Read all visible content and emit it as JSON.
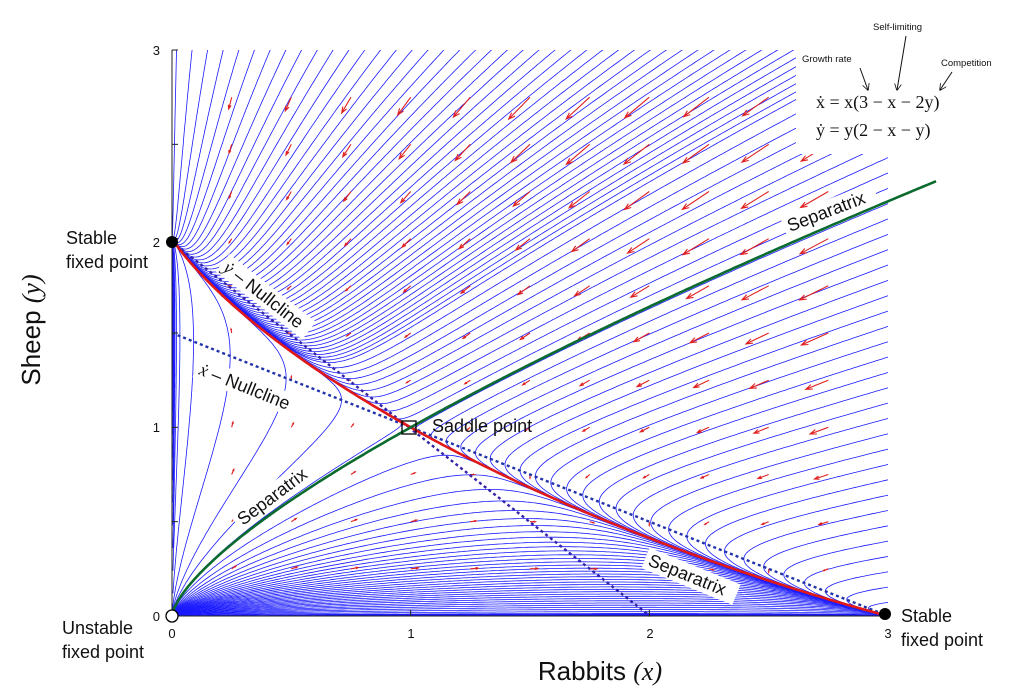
{
  "axes": {
    "xlabel_text": "Rabbits ",
    "xlabel_var": "(x)",
    "ylabel_text": "Sheep ",
    "ylabel_var": "(y)",
    "xticks": [
      "0",
      "1",
      "2",
      "3"
    ],
    "yticks": [
      "0",
      "1",
      "2",
      "3"
    ],
    "xlim": [
      0,
      3
    ],
    "ylim": [
      0,
      3
    ]
  },
  "labels": {
    "stable_top_1": "Stable",
    "stable_top_2": "fixed point",
    "stable_right_1": "Stable",
    "stable_right_2": "fixed point",
    "unstable_1": "Unstable",
    "unstable_2": "fixed point",
    "saddle": "Saddle point",
    "separatrix_upper": "Separatrix",
    "separatrix_left": "Separatrix",
    "separatrix_lower": "Separatrix",
    "y_nullcline_var": "ẏ",
    "y_nullcline_text": " – Nullcline",
    "x_nullcline_var": "ẋ",
    "x_nullcline_text": " – Nullcline"
  },
  "equations": {
    "eq1": "ẋ = x(3 − x − 2y)",
    "eq2": "ẏ = y(2 − x − y)",
    "ann_growth": "Growth rate",
    "ann_self": "Self-limiting",
    "ann_comp": "Competition"
  },
  "fixed_points": [
    {
      "name": "stable",
      "x": 0,
      "y": 2
    },
    {
      "name": "stable",
      "x": 3,
      "y": 0
    },
    {
      "name": "unstable",
      "x": 0,
      "y": 0
    },
    {
      "name": "saddle",
      "x": 1,
      "y": 1
    }
  ],
  "colors": {
    "streamline": "#1a1aff",
    "arrow": "#e02020",
    "separatrix": "#0b6b2e",
    "stable_manifold": "#e01818",
    "nullcline": "#2233aa"
  }
}
